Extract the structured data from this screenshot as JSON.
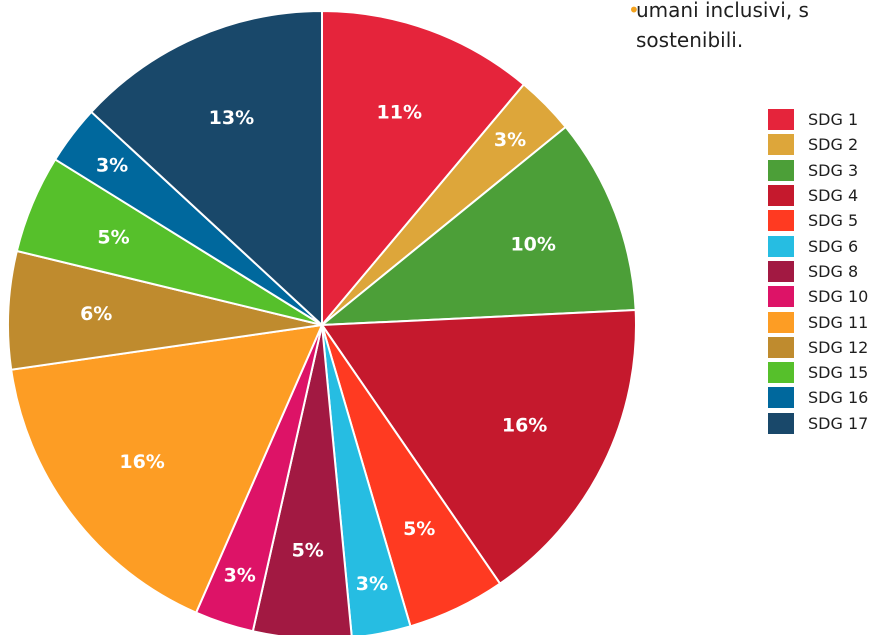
{
  "intro_text": {
    "line1": "umani inclusivi, s",
    "line2": "sostenibili.",
    "bullet_color": "#f4a21d"
  },
  "chart_data": {
    "type": "pie",
    "start_angle_deg": 0,
    "direction": "clockwise",
    "legend_position": "right",
    "slices": [
      {
        "label": "SDG 1",
        "value": 11,
        "value_label": "11%",
        "color": "#e5243b"
      },
      {
        "label": "SDG 2",
        "value": 3,
        "value_label": "3%",
        "color": "#dda63a"
      },
      {
        "label": "SDG 3",
        "value": 10,
        "value_label": "10%",
        "color": "#4c9f38"
      },
      {
        "label": "SDG 4",
        "value": 16,
        "value_label": "16%",
        "color": "#c5192d"
      },
      {
        "label": "SDG 5",
        "value": 5,
        "value_label": "5%",
        "color": "#ff3a21"
      },
      {
        "label": "SDG 6",
        "value": 3,
        "value_label": "3%",
        "color": "#26bde2"
      },
      {
        "label": "SDG 8",
        "value": 5,
        "value_label": "5%",
        "color": "#a21942"
      },
      {
        "label": "SDG 10",
        "value": 3,
        "value_label": "3%",
        "color": "#dd1367"
      },
      {
        "label": "SDG 11",
        "value": 16,
        "value_label": "16%",
        "color": "#fd9d24"
      },
      {
        "label": "SDG 12",
        "value": 6,
        "value_label": "6%",
        "color": "#bf8b2e"
      },
      {
        "label": "SDG 15",
        "value": 5,
        "value_label": "5%",
        "color": "#56c02b"
      },
      {
        "label": "SDG 16",
        "value": 3,
        "value_label": "3%",
        "color": "#00689d"
      },
      {
        "label": "SDG 17",
        "value": 13,
        "value_label": "13%",
        "color": "#19486a"
      }
    ]
  }
}
